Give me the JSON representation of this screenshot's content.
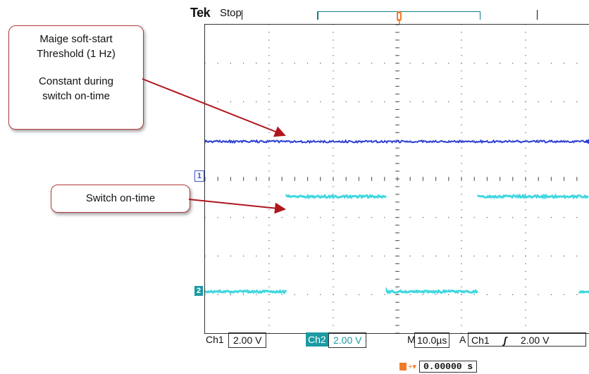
{
  "scope": {
    "brand": "Tek",
    "status": "Stop",
    "trigger_marker": "T"
  },
  "channels": {
    "ch1_marker": "1",
    "ch2_marker": "2"
  },
  "readout": {
    "ch1_label": "Ch1",
    "ch1_scale": "2.00 V",
    "ch2_label": "Ch2",
    "ch2_scale": "2.00 V",
    "timebase_prefix": "M",
    "timebase": "10.0µs",
    "trigger_prefix": "A",
    "trigger_source": "Ch1",
    "trigger_slope": "ʃ",
    "trigger_level": "2.00 V",
    "trigger_delay": "0.00000 s"
  },
  "callouts": {
    "threshold": {
      "line1": "Maige soft-start",
      "line2": "Threshold (1 Hz)",
      "line3": "Constant during",
      "line4": "switch on-time"
    },
    "switch": {
      "text": "Switch on-time"
    }
  },
  "colors": {
    "ch1": "#2b3fd6",
    "ch2": "#3fd7e0",
    "trigger": "#f07c2a",
    "callout_border": "#b23a3a",
    "arrow": "#b0161c"
  }
}
